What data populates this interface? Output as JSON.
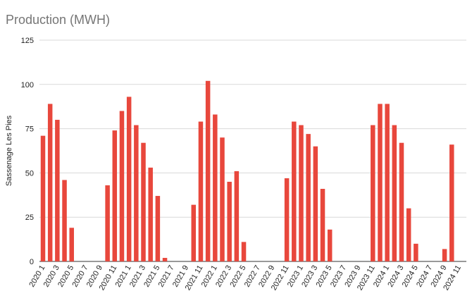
{
  "chart_data": {
    "type": "bar",
    "title": "Production (MWH)",
    "xlabel": "",
    "ylabel": "Sassenage Les Pies",
    "ylim": [
      0,
      125
    ],
    "yticks": [
      0,
      25,
      50,
      75,
      100,
      125
    ],
    "grid": true,
    "legend": "none",
    "bar_color": "#e8473c",
    "categories": [
      "2020 1",
      "2020 2",
      "2020 3",
      "2020 4",
      "2020 5",
      "2020 6",
      "2020 7",
      "2020 8",
      "2020 9",
      "2020 10",
      "2020 11",
      "2020 12",
      "2021 1",
      "2021 2",
      "2021 3",
      "2021 4",
      "2021 5",
      "2021 6",
      "2021 7",
      "2021 8",
      "2021 9",
      "2021 10",
      "2021 11",
      "2021 12",
      "2022 1",
      "2022 2",
      "2022 3",
      "2022 4",
      "2022 5",
      "2022 6",
      "2022 7",
      "2022 8",
      "2022 9",
      "2022 10",
      "2022 11",
      "2022 12",
      "2023 1",
      "2023 2",
      "2023 3",
      "2023 4",
      "2023 5",
      "2023 6",
      "2023 7",
      "2023 8",
      "2023 9",
      "2023 10",
      "2023 11",
      "2023 12",
      "2024 1",
      "2024 2",
      "2024 3",
      "2024 4",
      "2024 5",
      "2024 6",
      "2024 7",
      "2024 8",
      "2024 9",
      "2024 10",
      "2024 11"
    ],
    "tick_labels_shown": [
      "2020 1",
      "2020 3",
      "2020 5",
      "2020 7",
      "2020 9",
      "2020 11",
      "2021 1",
      "2021 3",
      "2021 5",
      "2021 7",
      "2021 9",
      "2021 11",
      "2022 1",
      "2022 3",
      "2022 5",
      "2022 7",
      "2022 9",
      "2022 11",
      "2023 1",
      "2023 3",
      "2023 5",
      "2023 7",
      "2023 9",
      "2023 11",
      "2024 1",
      "2024 3",
      "2024 5",
      "2024 7",
      "2024 9",
      "2024 11"
    ],
    "values": [
      71,
      89,
      80,
      46,
      19,
      0,
      0,
      0,
      0,
      43,
      74,
      85,
      93,
      77,
      67,
      53,
      37,
      2,
      0,
      0,
      0,
      32,
      79,
      102,
      83,
      70,
      45,
      51,
      11,
      0,
      0,
      0,
      0,
      0,
      47,
      79,
      77,
      72,
      65,
      41,
      18,
      0,
      0,
      0,
      0,
      0,
      77,
      89,
      89,
      77,
      67,
      30,
      10,
      0,
      0,
      0,
      7,
      66,
      0
    ]
  }
}
